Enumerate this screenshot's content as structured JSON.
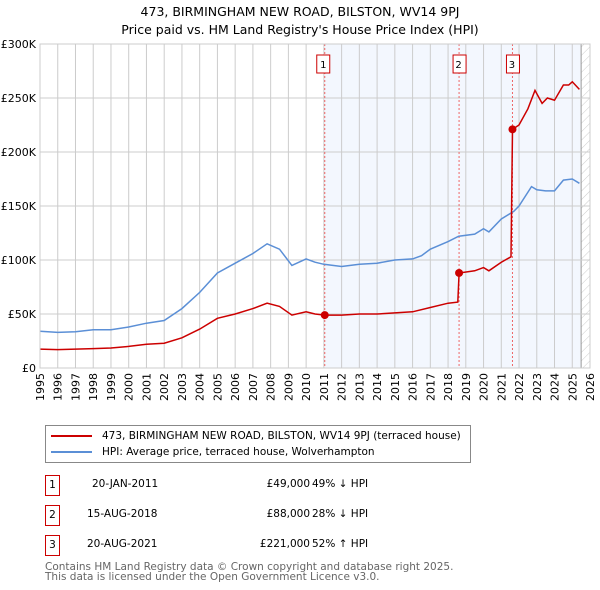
{
  "title": "473, BIRMINGHAM NEW ROAD, BILSTON, WV14 9PJ",
  "subtitle": "Price paid vs. HM Land Registry's House Price Index (HPI)",
  "chart_data": {
    "type": "line",
    "title": "473, BIRMINGHAM NEW ROAD, BILSTON, WV14 9PJ",
    "subtitle": "Price paid vs. HM Land Registry's House Price Index (HPI)",
    "xlim": [
      1995,
      2026
    ],
    "ylim": [
      0,
      300000
    ],
    "x_ticks": [
      "1995",
      "1996",
      "1997",
      "1998",
      "1999",
      "2000",
      "2001",
      "2002",
      "2003",
      "2004",
      "2005",
      "2006",
      "2007",
      "2008",
      "2009",
      "2010",
      "2011",
      "2012",
      "2013",
      "2014",
      "2015",
      "2016",
      "2017",
      "2018",
      "2019",
      "2020",
      "2021",
      "2022",
      "2023",
      "2024",
      "2025",
      "2026"
    ],
    "y_ticks": [
      {
        "v": 0,
        "label": "£0"
      },
      {
        "v": 50000,
        "label": "£50K"
      },
      {
        "v": 100000,
        "label": "£100K"
      },
      {
        "v": 150000,
        "label": "£150K"
      },
      {
        "v": 200000,
        "label": "£200K"
      },
      {
        "v": 250000,
        "label": "£250K"
      },
      {
        "v": 300000,
        "label": "£300K"
      }
    ],
    "grid": true,
    "series": [
      {
        "name": "473, BIRMINGHAM NEW ROAD, BILSTON, WV14 9PJ (terraced house)",
        "color": "#cc0000",
        "x": [
          1995,
          1996,
          1997,
          1998,
          1999,
          2000,
          2001,
          2002,
          2003,
          2004,
          2005,
          2006,
          2007,
          2007.8,
          2008.5,
          2009.2,
          2010,
          2010.5,
          2011.05,
          2012,
          2013,
          2014,
          2015,
          2016,
          2017,
          2018,
          2018.55,
          2018.62,
          2019.5,
          2020,
          2020.3,
          2021,
          2021.55,
          2021.63,
          2022,
          2022.5,
          2022.9,
          2023.3,
          2023.6,
          2024,
          2024.5,
          2024.8,
          2025,
          2025.4
        ],
        "y": [
          17500,
          17000,
          17500,
          18000,
          18500,
          20000,
          22000,
          23000,
          28000,
          36000,
          46000,
          50000,
          55000,
          60000,
          57000,
          49000,
          52000,
          50000,
          49000,
          49000,
          50000,
          50000,
          51000,
          52000,
          56000,
          60000,
          61000,
          88000,
          90000,
          93000,
          90000,
          98000,
          103000,
          221000,
          225000,
          240000,
          257000,
          245000,
          250000,
          248000,
          262000,
          262000,
          265000,
          258000
        ]
      },
      {
        "name": "HPI: Average price, terraced house, Wolverhampton",
        "color": "#5b8fd6",
        "x": [
          1995,
          1996,
          1997,
          1998,
          1999,
          2000,
          2001,
          2002,
          2003,
          2004,
          2005,
          2006,
          2007,
          2007.8,
          2008.5,
          2009.2,
          2010,
          2010.5,
          2011,
          2012,
          2013,
          2014,
          2015,
          2016,
          2016.5,
          2017,
          2018,
          2018.6,
          2019.5,
          2020,
          2020.3,
          2021,
          2021.7,
          2022,
          2022.7,
          2023,
          2023.5,
          2024,
          2024.5,
          2025,
          2025.4
        ],
        "y": [
          34000,
          33000,
          33500,
          35500,
          35500,
          38000,
          41500,
          44000,
          55000,
          70000,
          88000,
          97000,
          106000,
          115000,
          110000,
          95000,
          101000,
          98000,
          96000,
          94000,
          96000,
          97000,
          100000,
          101000,
          104000,
          110000,
          117000,
          122000,
          124000,
          129000,
          126000,
          138000,
          145000,
          150000,
          168000,
          165000,
          164000,
          164000,
          174000,
          175000,
          171000
        ]
      }
    ],
    "sales": [
      {
        "label": "1",
        "x": 2011.05,
        "y": 49000
      },
      {
        "label": "2",
        "x": 2018.62,
        "y": 88000
      },
      {
        "label": "3",
        "x": 2021.63,
        "y": 221000
      }
    ],
    "shaded_from": 2011.05,
    "hatched_from": 2025.5,
    "legend_position": "below"
  },
  "legend": [
    {
      "label": "473, BIRMINGHAM NEW ROAD, BILSTON, WV14 9PJ (terraced house)",
      "color": "#cc0000"
    },
    {
      "label": "HPI: Average price, terraced house, Wolverhampton",
      "color": "#5b8fd6"
    }
  ],
  "transactions": [
    {
      "num": "1",
      "date": "20-JAN-2011",
      "price": "£49,000",
      "hpi": "49% ↓ HPI"
    },
    {
      "num": "2",
      "date": "15-AUG-2018",
      "price": "£88,000",
      "hpi": "28% ↓ HPI"
    },
    {
      "num": "3",
      "date": "20-AUG-2021",
      "price": "£221,000",
      "hpi": "52% ↑ HPI"
    }
  ],
  "footer": [
    "Contains HM Land Registry data © Crown copyright and database right 2025.",
    "This data is licensed under the Open Government Licence v3.0."
  ]
}
